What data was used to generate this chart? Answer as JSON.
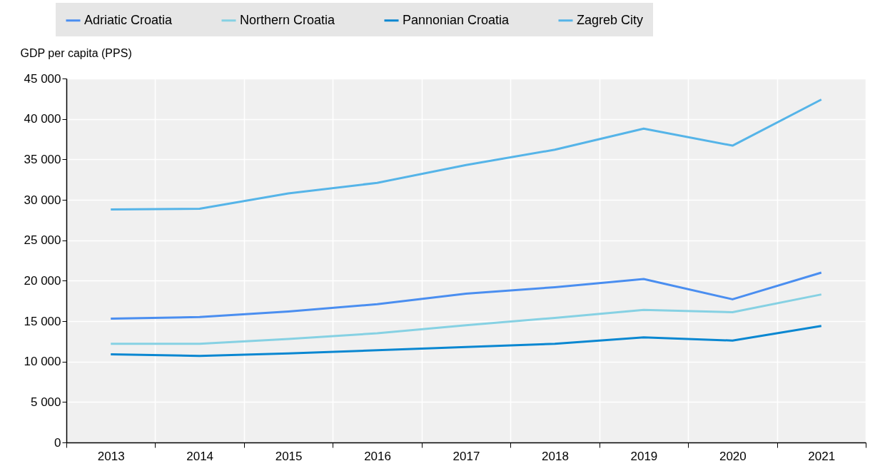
{
  "chart_data": {
    "type": "line",
    "ylabel": "GDP per capita (PPS)",
    "categories": [
      "2013",
      "2014",
      "2015",
      "2016",
      "2017",
      "2018",
      "2019",
      "2020",
      "2021"
    ],
    "series": [
      {
        "name": "Adriatic Croatia",
        "color": "#4a8ef0",
        "values": [
          15300,
          15500,
          16200,
          17100,
          18400,
          19200,
          20200,
          17700,
          21000
        ]
      },
      {
        "name": "Northern Croatia",
        "color": "#86d1e3",
        "values": [
          12200,
          12200,
          12800,
          13500,
          14500,
          15400,
          16400,
          16100,
          18300
        ]
      },
      {
        "name": "Pannonian Croatia",
        "color": "#0a87d1",
        "values": [
          10900,
          10700,
          11000,
          11400,
          11800,
          12200,
          13000,
          12600,
          14400
        ]
      },
      {
        "name": "Zagreb City",
        "color": "#55b4e8",
        "values": [
          28800,
          28900,
          30800,
          32100,
          34300,
          36200,
          38800,
          36700,
          42400
        ]
      }
    ],
    "ylim": [
      0,
      45000
    ],
    "yticks": [
      0,
      5000,
      10000,
      15000,
      20000,
      25000,
      30000,
      35000,
      40000,
      45000
    ],
    "grid": true,
    "legend": "top",
    "line_style": "solid"
  }
}
